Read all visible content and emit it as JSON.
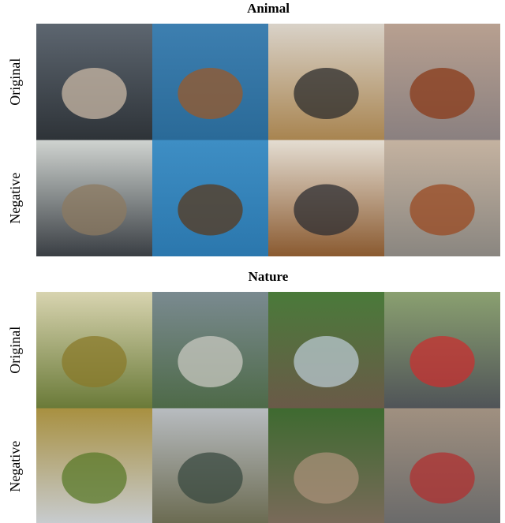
{
  "sections": [
    {
      "title": "Animal",
      "rows": [
        {
          "label": "Original"
        },
        {
          "label": "Negative"
        }
      ]
    },
    {
      "title": "Nature",
      "rows": [
        {
          "label": "Original"
        },
        {
          "label": "Negative"
        }
      ]
    }
  ]
}
